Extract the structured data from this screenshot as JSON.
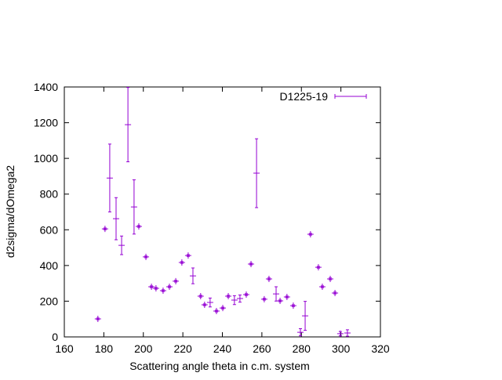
{
  "chart_data": {
    "type": "errorbar",
    "xlabel": "Scattering angle theta in c.m. system",
    "ylabel": "d2sigma/dOmega2",
    "xlim": [
      160,
      320
    ],
    "xticks": [
      160,
      180,
      200,
      220,
      240,
      260,
      280,
      300,
      320
    ],
    "ylim": [
      0,
      1400
    ],
    "yticks": [
      0,
      200,
      400,
      600,
      800,
      1000,
      1200,
      1400
    ],
    "legend": "top-right",
    "series": [
      {
        "name": "D1225-19",
        "color": "#9400d3",
        "x": [
          177,
          180.6,
          183,
          186.2,
          189,
          192.2,
          195.3,
          197.7,
          201.3,
          204.1,
          206.4,
          210,
          213.2,
          216.4,
          219.5,
          222.7,
          225.1,
          229,
          231,
          233.8,
          237,
          240.2,
          243,
          246.1,
          248.9,
          252.1,
          254.5,
          257.3,
          261.2,
          263.6,
          267.2,
          269.2,
          272.7,
          275.9,
          279.5,
          281.9,
          284.6,
          288.6,
          290.6,
          294.6,
          297,
          299.7,
          303.3
        ],
        "values": [
          101,
          605,
          890,
          662,
          513,
          1189,
          728,
          619,
          448,
          281,
          272,
          259,
          281,
          312,
          417,
          456,
          342,
          228,
          180,
          193,
          145,
          162,
          228,
          206,
          215,
          237,
          408,
          917,
          211,
          325,
          241,
          202,
          224,
          175,
          26,
          118,
          575,
          390,
          281,
          325,
          246,
          18,
          22
        ],
        "errors": [
          5,
          5,
          190,
          118,
          52,
          208,
          152,
          5,
          5,
          5,
          5,
          5,
          5,
          5,
          5,
          5,
          44,
          5,
          5,
          25,
          5,
          5,
          5,
          25,
          20,
          5,
          5,
          193,
          5,
          5,
          40,
          5,
          5,
          5,
          20,
          81,
          5,
          5,
          5,
          5,
          5,
          12,
          18
        ]
      }
    ]
  }
}
